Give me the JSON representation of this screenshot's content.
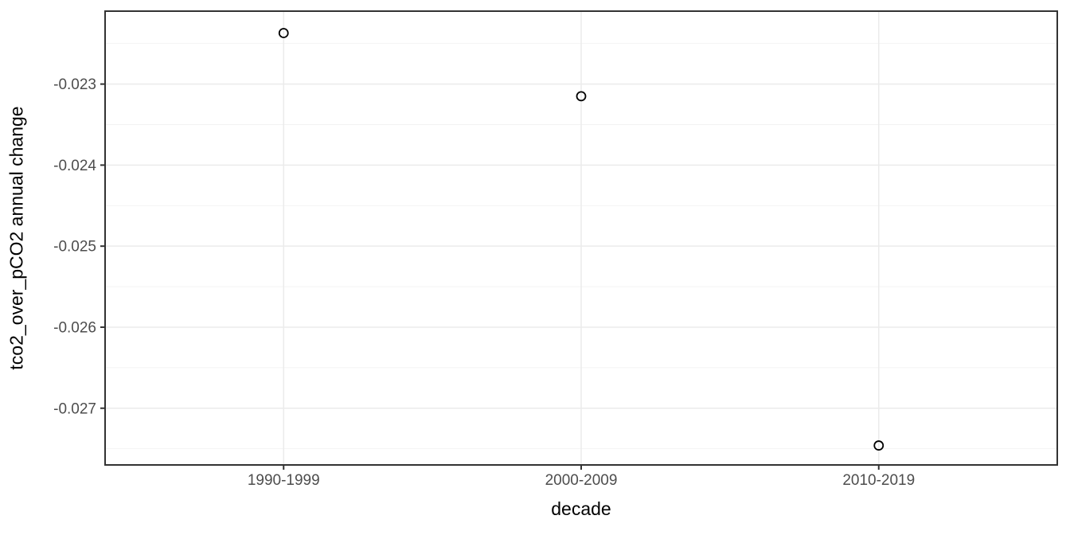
{
  "chart_data": {
    "type": "scatter",
    "title": "",
    "xlabel": "decade",
    "ylabel": "tco2_over_pCO2 annual change",
    "categories": [
      "1990-1999",
      "2000-2009",
      "2010-2019"
    ],
    "values": [
      -0.02237,
      -0.02315,
      -0.02746
    ],
    "ylim": [
      -0.0277,
      -0.0221
    ],
    "yticks": [
      -0.023,
      -0.024,
      -0.025,
      -0.026,
      -0.027
    ],
    "ytick_labels": [
      "-0.023",
      "-0.024",
      "-0.025",
      "-0.026",
      "-0.027"
    ],
    "yminor": [
      -0.0225,
      -0.0235,
      -0.0245,
      -0.0255,
      -0.0265,
      -0.0275
    ],
    "grid": true,
    "legend": "none",
    "marker": "open-circle",
    "style": {
      "page_bg": "#ffffff",
      "panel_bg": "#ffffff",
      "grid_major": "#ebebeb",
      "grid_minor": "#f2f2f2",
      "panel_border": "#333333",
      "tick_color": "#333333",
      "tick_label_color": "#4d4d4d",
      "axis_title_color": "#000000",
      "point_color": "#000000"
    }
  }
}
